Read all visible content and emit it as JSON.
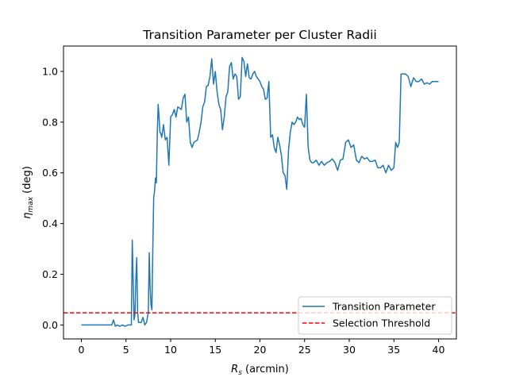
{
  "chart_data": {
    "type": "line",
    "title": "Transition Parameter per Cluster Radii",
    "xlabel": "$R_s$ (arcmin)",
    "xlabel_parts": {
      "main": "R",
      "sub": "s",
      "rest": " (arcmin)"
    },
    "ylabel": "$\\eta_{max}$ (deg)",
    "ylabel_parts": {
      "main": "η",
      "sub": "max",
      "rest": " (deg)"
    },
    "xlim": [
      -2.0,
      42.0
    ],
    "ylim": [
      -0.055,
      1.1
    ],
    "xticks": [
      0,
      5,
      10,
      15,
      20,
      25,
      30,
      35,
      40
    ],
    "xtick_labels": [
      "0",
      "5",
      "10",
      "15",
      "20",
      "25",
      "30",
      "35",
      "40"
    ],
    "yticks": [
      0.0,
      0.2,
      0.4,
      0.6,
      0.8,
      1.0
    ],
    "ytick_labels": [
      "0.0",
      "0.2",
      "0.4",
      "0.6",
      "0.8",
      "1.0"
    ],
    "grid": false,
    "legend_position": "lower-right",
    "series": [
      {
        "name": "Transition Parameter",
        "color": "#1f77b4",
        "style": "solid",
        "x": [
          0.0,
          0.5,
          1.0,
          1.5,
          2.0,
          2.5,
          3.0,
          3.2,
          3.4,
          3.6,
          3.8,
          4.0,
          4.3,
          4.6,
          4.9,
          5.2,
          5.4,
          5.6,
          5.7,
          5.8,
          5.9,
          6.0,
          6.1,
          6.2,
          6.3,
          6.4,
          6.5,
          6.7,
          6.9,
          7.1,
          7.3,
          7.5,
          7.6,
          7.7,
          7.8,
          7.9,
          8.0,
          8.1,
          8.2,
          8.3,
          8.4,
          8.5,
          8.6,
          8.7,
          8.8,
          8.9,
          9.0,
          9.2,
          9.4,
          9.6,
          9.8,
          10.0,
          10.2,
          10.4,
          10.6,
          10.8,
          11.0,
          11.2,
          11.4,
          11.6,
          11.8,
          12.0,
          12.2,
          12.4,
          12.6,
          12.8,
          13.0,
          13.2,
          13.4,
          13.6,
          13.8,
          14.0,
          14.2,
          14.4,
          14.6,
          14.8,
          15.0,
          15.2,
          15.4,
          15.6,
          15.8,
          16.0,
          16.2,
          16.4,
          16.6,
          16.8,
          17.0,
          17.2,
          17.4,
          17.6,
          17.8,
          18.0,
          18.2,
          18.4,
          18.6,
          18.8,
          19.0,
          19.2,
          19.4,
          19.6,
          19.8,
          20.0,
          20.2,
          20.4,
          20.6,
          20.8,
          21.0,
          21.2,
          21.4,
          21.6,
          21.8,
          22.0,
          22.2,
          22.4,
          22.6,
          22.8,
          23.0,
          23.2,
          23.4,
          23.6,
          23.8,
          24.0,
          24.2,
          24.4,
          24.6,
          24.8,
          25.0,
          25.2,
          25.4,
          25.6,
          25.8,
          26.0,
          26.3,
          26.6,
          26.9,
          27.2,
          27.5,
          27.8,
          28.1,
          28.4,
          28.7,
          29.0,
          29.3,
          29.6,
          29.9,
          30.2,
          30.5,
          30.8,
          31.1,
          31.4,
          31.7,
          32.0,
          32.3,
          32.6,
          32.9,
          33.2,
          33.5,
          33.8,
          34.1,
          34.4,
          34.7,
          35.0,
          35.2,
          35.4,
          35.6,
          35.8,
          36.0,
          36.3,
          36.6,
          36.9,
          37.2,
          37.5,
          37.8,
          38.1,
          38.4,
          38.7,
          39.0,
          39.3,
          39.6,
          40.0
        ],
        "y": [
          0.0,
          0.0,
          0.0,
          0.0,
          0.0,
          0.0,
          0.0,
          0.0,
          0.0,
          0.02,
          -0.005,
          0.0,
          -0.005,
          0.0,
          -0.005,
          0.0,
          0.0,
          0.0,
          0.335,
          0.18,
          0.02,
          0.04,
          0.18,
          0.265,
          0.05,
          0.01,
          0.01,
          0.01,
          0.03,
          0.0,
          0.01,
          0.05,
          0.285,
          0.15,
          0.08,
          0.06,
          0.3,
          0.5,
          0.53,
          0.58,
          0.56,
          0.75,
          0.87,
          0.82,
          0.76,
          0.755,
          0.74,
          0.79,
          0.73,
          0.74,
          0.63,
          0.82,
          0.83,
          0.85,
          0.82,
          0.86,
          0.855,
          0.85,
          0.895,
          0.91,
          0.8,
          0.82,
          0.72,
          0.7,
          0.72,
          0.725,
          0.73,
          0.76,
          0.8,
          0.86,
          0.88,
          0.94,
          0.945,
          0.98,
          1.05,
          0.95,
          1.0,
          0.92,
          0.87,
          0.85,
          0.77,
          0.82,
          0.9,
          0.92,
          1.02,
          1.035,
          0.97,
          0.99,
          0.98,
          0.89,
          0.9,
          1.055,
          1.04,
          0.98,
          1.03,
          0.975,
          0.97,
          0.99,
          1.0,
          0.98,
          0.97,
          0.96,
          0.94,
          0.93,
          0.89,
          0.895,
          0.96,
          0.74,
          0.75,
          0.7,
          0.68,
          0.74,
          0.71,
          0.67,
          0.6,
          0.59,
          0.535,
          0.69,
          0.76,
          0.8,
          0.79,
          0.8,
          0.82,
          0.81,
          0.815,
          0.79,
          0.78,
          0.91,
          0.7,
          0.65,
          0.64,
          0.64,
          0.65,
          0.63,
          0.645,
          0.63,
          0.64,
          0.645,
          0.655,
          0.64,
          0.61,
          0.65,
          0.655,
          0.72,
          0.73,
          0.7,
          0.71,
          0.65,
          0.64,
          0.665,
          0.655,
          0.66,
          0.645,
          0.645,
          0.65,
          0.62,
          0.62,
          0.63,
          0.6,
          0.63,
          0.61,
          0.62,
          0.72,
          0.7,
          0.72,
          0.99,
          0.99,
          0.99,
          0.98,
          0.94,
          0.975,
          0.96,
          0.96,
          0.97,
          0.95,
          0.955,
          0.95,
          0.96,
          0.96,
          0.96
        ]
      },
      {
        "name": "Selection Threshold",
        "color": "#ff0000",
        "style": "dashed",
        "x": [
          -2.0,
          42.0
        ],
        "y": [
          0.048,
          0.048
        ]
      }
    ]
  }
}
